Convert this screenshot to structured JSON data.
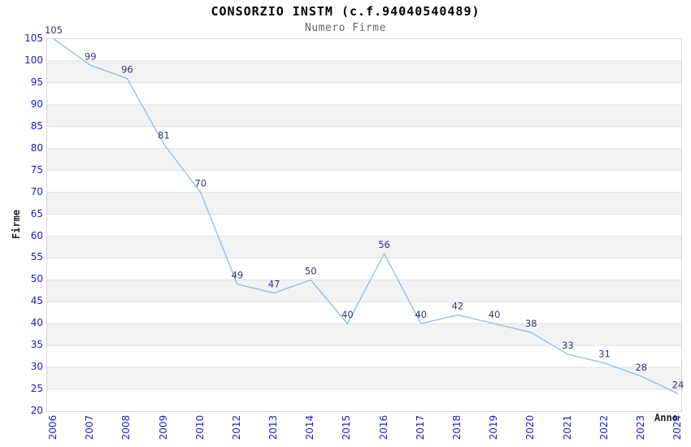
{
  "chart_data": {
    "type": "line",
    "title": "CONSORZIO INSTM (c.f.94040540489)",
    "subtitle": "Numero Firme",
    "xlabel": "Anno",
    "ylabel": "Firme",
    "x": [
      "2006",
      "2007",
      "2008",
      "2009",
      "2010",
      "2012",
      "2013",
      "2014",
      "2015",
      "2016",
      "2017",
      "2018",
      "2019",
      "2020",
      "2021",
      "2022",
      "2023",
      "2024"
    ],
    "values": [
      105,
      99,
      96,
      81,
      70,
      49,
      47,
      50,
      40,
      56,
      40,
      42,
      40,
      38,
      33,
      31,
      28,
      24
    ],
    "ylim": [
      20,
      105
    ],
    "ytick_step": 5,
    "legend": "none",
    "grid": "horizontal-bands",
    "colors": {
      "line": "#88b7e6",
      "tick_label": "#1a1acc",
      "data_label": "#333377",
      "band": "#f2f2f2",
      "gridline": "#e0e0e0",
      "plot_border": "#d6d6d6",
      "title": "#000000",
      "subtitle": "#666666",
      "axis_title": "#222222"
    }
  }
}
